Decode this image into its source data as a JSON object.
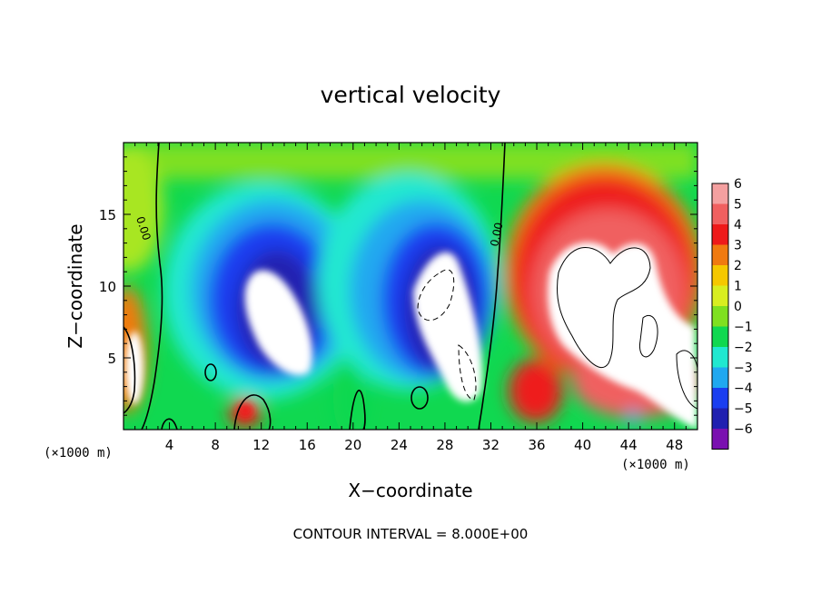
{
  "chart_data": {
    "type": "heatmap",
    "title": "vertical velocity",
    "xlabel": "X−coordinate",
    "ylabel": "Z−coordinate",
    "x_unit_left": "(×1000 m)",
    "x_unit_right": "(×1000 m)",
    "xlim": [
      0,
      50
    ],
    "ylim": [
      0,
      20
    ],
    "x_ticks": [
      4,
      8,
      12,
      16,
      20,
      24,
      28,
      32,
      36,
      40,
      44,
      48
    ],
    "y_ticks": [
      5,
      10,
      15
    ],
    "x_tick_labels": [
      "4",
      "8",
      "12",
      "16",
      "20",
      "24",
      "28",
      "32",
      "36",
      "40",
      "44",
      "48"
    ],
    "y_tick_labels": [
      "5",
      "10",
      "15"
    ],
    "colorbar": {
      "levels": [
        6,
        5,
        4,
        3,
        2,
        1,
        0,
        -1,
        -2,
        -3,
        -4,
        -5,
        -6
      ],
      "labels": [
        "6",
        "5",
        "4",
        "3",
        "2",
        "1",
        "0",
        "−1",
        "−2",
        "−3",
        "−4",
        "−5",
        "−6"
      ],
      "colors": [
        "#f4a0a0",
        "#f06060",
        "#ee1a1a",
        "#f07a10",
        "#f5c800",
        "#d8ee20",
        "#7fe020",
        "#10d850",
        "#20e8d0",
        "#20a8f0",
        "#1a3ef0",
        "#2020b0",
        "#7a10b0"
      ]
    },
    "contour_labels": [
      "0.00",
      "0.00"
    ],
    "note": "CONTOUR INTERVAL = 8.000E+00",
    "features": [
      {
        "kind": "updraft",
        "x": 44,
        "z": 9,
        "value": 6
      },
      {
        "kind": "updraft",
        "x": 10.5,
        "z": 1.3,
        "value": 5
      },
      {
        "kind": "updraft",
        "x": 0.5,
        "z": 5,
        "value": 6
      },
      {
        "kind": "downdraft",
        "x": 13,
        "z": 8,
        "value": -6
      },
      {
        "kind": "downdraft",
        "x": 28,
        "z": 8.5,
        "value": -6
      }
    ]
  }
}
